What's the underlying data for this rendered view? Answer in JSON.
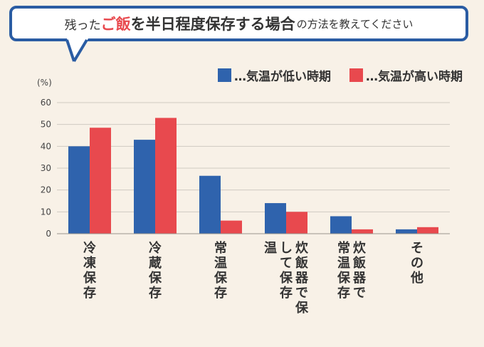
{
  "title": {
    "part1": "残った",
    "accent": "ご飯",
    "part2": "を",
    "bold": "半日程度保存する場合",
    "part3": "の方法を教えてください"
  },
  "colors": {
    "low": "#2f63ad",
    "high": "#e8494e",
    "frame": "#2a5ca3",
    "background": "#f8f1e7"
  },
  "chart_data": {
    "type": "bar",
    "ylabel": "(%)",
    "ylim": [
      0,
      60
    ],
    "yticks": [
      "0",
      "10",
      "20",
      "30",
      "40",
      "50",
      "60"
    ],
    "grid": true,
    "legend_position": "top-right",
    "categories": [
      [
        "冷凍保存"
      ],
      [
        "冷蔵保存"
      ],
      [
        "常温保存"
      ],
      [
        "炊飯器で保",
        "して保存",
        "温"
      ],
      [
        "炊飯器で",
        "常温保存"
      ],
      [
        "その他"
      ]
    ],
    "series": [
      {
        "name": "…気温が低い時期",
        "color": "#2f63ad",
        "values": [
          40,
          43,
          26.5,
          14,
          8,
          2
        ]
      },
      {
        "name": "…気温が高い時期",
        "color": "#e8494e",
        "values": [
          48.5,
          53,
          6,
          10,
          2,
          3
        ]
      }
    ]
  }
}
